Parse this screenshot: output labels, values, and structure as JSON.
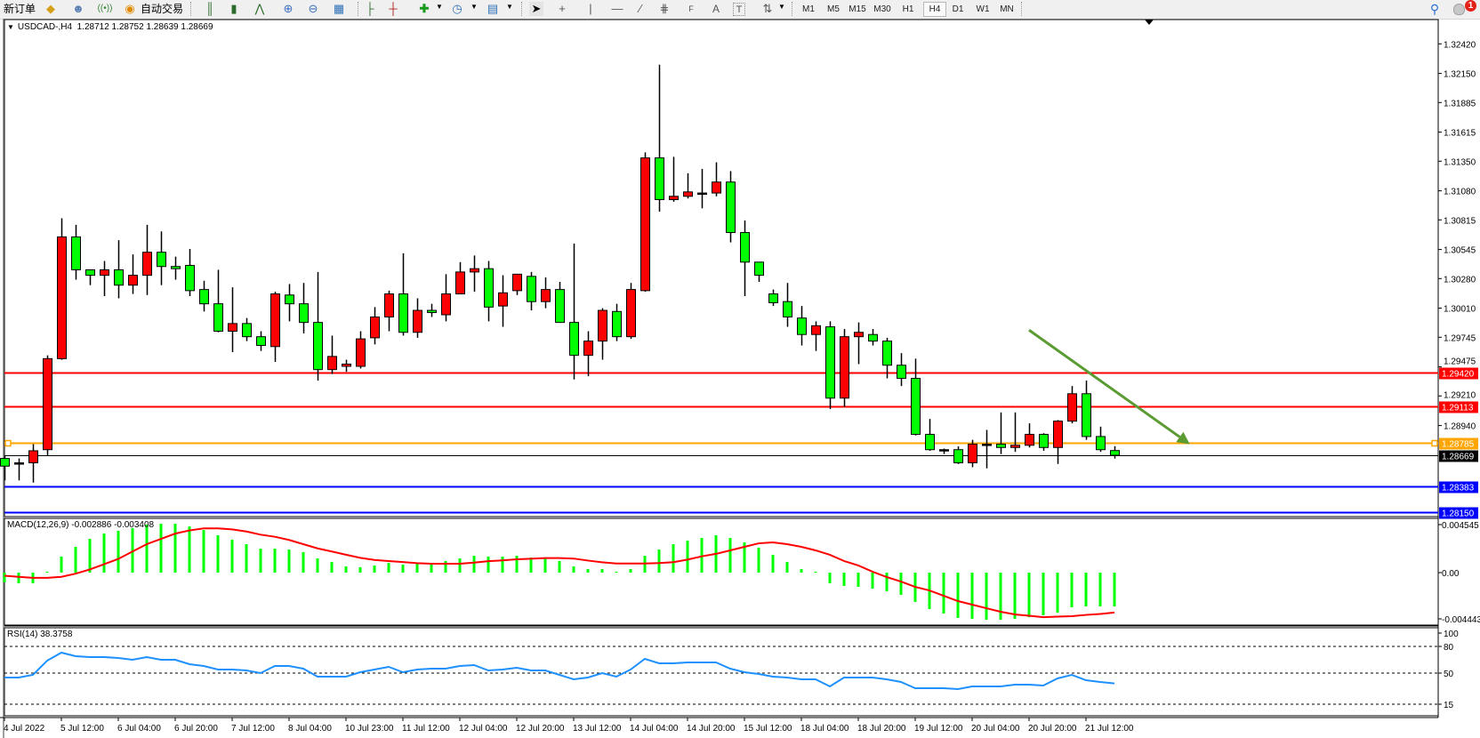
{
  "toolbar": {
    "new_order_label": "新订单",
    "auto_trading_label": "自动交易",
    "timeframes": [
      "M1",
      "M5",
      "M15",
      "M30",
      "H1",
      "H4",
      "D1",
      "W1",
      "MN"
    ],
    "active_timeframe": "H4",
    "drawing_tools": {
      "text_label": "A",
      "fibo_label": "F"
    },
    "notification_count": "1",
    "icons": [
      "market-watch-icon",
      "navigator-icon",
      "signals-icon",
      "auto-trading-icon",
      "bar-chart-icon",
      "candlestick-icon",
      "line-chart-icon",
      "zoom-in-icon",
      "zoom-out-icon",
      "tile-windows-icon",
      "auto-scroll-icon",
      "chart-shift-icon",
      "indicators-icon",
      "periods-icon",
      "templates-icon",
      "cursor-icon",
      "crosshair-icon",
      "vertical-line-icon",
      "horizontal-line-icon",
      "trendline-icon",
      "equidistant-channel-icon",
      "fibonacci-icon",
      "text-icon",
      "text-label-icon",
      "arrows-icon",
      "search-icon",
      "notification-icon"
    ]
  },
  "chart": {
    "symbol": "USDCAD-,H4",
    "ohlc_text": "1.28712 1.28752 1.28639 1.28669",
    "colors": {
      "bull": "#ff0000",
      "bear": "#00ff00",
      "outline": "#000000",
      "arrow": "#5a9b32"
    },
    "price_ticks": [
      "1.32420",
      "1.32150",
      "1.31885",
      "1.31615",
      "1.31350",
      "1.31080",
      "1.30815",
      "1.30545",
      "1.30280",
      "1.30010",
      "1.29745",
      "1.29475",
      "1.29210",
      "1.28940"
    ],
    "ylim": [
      1.2811,
      1.3264
    ],
    "hlines": [
      {
        "price": 1.2942,
        "label": "1.29420",
        "color": "#ff0000"
      },
      {
        "price": 1.29113,
        "label": "1.29113",
        "color": "#ff0000"
      },
      {
        "price": 1.28785,
        "label": "1.28785",
        "color": "#ffa500"
      },
      {
        "price": 1.28669,
        "label": "1.28669",
        "color": "#000000"
      },
      {
        "price": 1.28383,
        "label": "1.28383",
        "color": "#0000ff"
      },
      {
        "price": 1.2815,
        "label": "1.28150",
        "color": "#0000ff"
      }
    ],
    "trend_arrow": {
      "from_bar": 72,
      "from_price": 1.2981,
      "to_bar": 83.3,
      "to_price": 1.2877
    },
    "candles_ohlc": [
      [
        1.2864,
        1.2867,
        1.2844,
        1.2857
      ],
      [
        1.286,
        1.2864,
        1.2844,
        1.286
      ],
      [
        1.286,
        1.2877,
        1.2842,
        1.2871
      ],
      [
        1.2872,
        1.2958,
        1.2867,
        1.2955
      ],
      [
        1.2955,
        1.3083,
        1.2954,
        1.3066
      ],
      [
        1.3066,
        1.3077,
        1.3027,
        1.3036
      ],
      [
        1.3036,
        1.3036,
        1.3022,
        1.3031
      ],
      [
        1.3031,
        1.3044,
        1.3012,
        1.3036
      ],
      [
        1.3036,
        1.3063,
        1.301,
        1.3022
      ],
      [
        1.3022,
        1.305,
        1.3014,
        1.3031
      ],
      [
        1.3031,
        1.3077,
        1.3013,
        1.3052
      ],
      [
        1.3052,
        1.3071,
        1.3022,
        1.3039
      ],
      [
        1.3039,
        1.3048,
        1.3027,
        1.3037
      ],
      [
        1.304,
        1.3055,
        1.3012,
        1.3017
      ],
      [
        1.3018,
        1.3026,
        1.2998,
        1.3005
      ],
      [
        1.3005,
        1.3036,
        1.2979,
        1.298
      ],
      [
        1.298,
        1.302,
        1.2961,
        1.2987
      ],
      [
        1.2987,
        1.2992,
        1.2971,
        1.2975
      ],
      [
        1.2975,
        1.298,
        1.2962,
        1.2967
      ],
      [
        1.2966,
        1.3016,
        1.2952,
        1.3014
      ],
      [
        1.3013,
        1.3023,
        1.2989,
        1.3005
      ],
      [
        1.3005,
        1.3024,
        1.2978,
        1.2988
      ],
      [
        1.2988,
        1.3034,
        1.2935,
        1.2945
      ],
      [
        1.2945,
        1.2976,
        1.2941,
        1.2957
      ],
      [
        1.2948,
        1.2954,
        1.2943,
        1.295
      ],
      [
        1.2948,
        1.298,
        1.2946,
        1.2973
      ],
      [
        1.2974,
        1.3002,
        1.2968,
        1.2993
      ],
      [
        1.2993,
        1.3017,
        1.298,
        1.3014
      ],
      [
        1.3014,
        1.3051,
        1.2976,
        1.2979
      ],
      [
        1.2979,
        1.301,
        1.2974,
        1.2999
      ],
      [
        1.2999,
        1.3005,
        1.2993,
        1.2997
      ],
      [
        1.2995,
        1.3032,
        1.2989,
        1.3014
      ],
      [
        1.3014,
        1.3043,
        1.3014,
        1.3034
      ],
      [
        1.3034,
        1.3049,
        1.3016,
        1.3037
      ],
      [
        1.3037,
        1.3044,
        1.2989,
        1.3002
      ],
      [
        1.3003,
        1.3031,
        1.2984,
        1.3015
      ],
      [
        1.3017,
        1.3032,
        1.3013,
        1.3032
      ],
      [
        1.303,
        1.3034,
        1.2999,
        1.3007
      ],
      [
        1.3007,
        1.3029,
        1.3001,
        1.3018
      ],
      [
        1.3018,
        1.3025,
        1.2988,
        1.2988
      ],
      [
        1.2988,
        1.306,
        1.2936,
        1.2958
      ],
      [
        1.2958,
        1.298,
        1.2939,
        1.2971
      ],
      [
        1.2971,
        1.3001,
        1.2954,
        1.2999
      ],
      [
        1.2998,
        1.3005,
        1.2971,
        1.2975
      ],
      [
        1.2975,
        1.3024,
        1.2973,
        1.3018
      ],
      [
        1.3017,
        1.3143,
        1.3016,
        1.3138
      ],
      [
        1.3138,
        1.3223,
        1.3089,
        1.31
      ],
      [
        1.31,
        1.3139,
        1.3098,
        1.3103
      ],
      [
        1.3103,
        1.3124,
        1.3101,
        1.3107
      ],
      [
        1.3106,
        1.3128,
        1.3092,
        1.3106
      ],
      [
        1.3106,
        1.3134,
        1.3103,
        1.3116
      ],
      [
        1.3116,
        1.3126,
        1.3061,
        1.307
      ],
      [
        1.307,
        1.3081,
        1.3012,
        1.3043
      ],
      [
        1.3043,
        1.3043,
        1.3025,
        1.3031
      ],
      [
        1.3014,
        1.3018,
        1.3003,
        1.3006
      ],
      [
        1.3007,
        1.3024,
        1.2984,
        1.2993
      ],
      [
        1.2992,
        1.3003,
        1.2967,
        1.2977
      ],
      [
        1.2977,
        1.2989,
        1.2962,
        1.2985
      ],
      [
        1.2984,
        1.2989,
        1.2909,
        1.2919
      ],
      [
        1.2919,
        1.2982,
        1.2911,
        1.2975
      ],
      [
        1.2975,
        1.2988,
        1.295,
        1.2979
      ],
      [
        1.2977,
        1.2982,
        1.2967,
        1.2971
      ],
      [
        1.2971,
        1.2974,
        1.2937,
        1.2949
      ],
      [
        1.2949,
        1.296,
        1.293,
        1.2937
      ],
      [
        1.2937,
        1.2955,
        1.2885,
        1.2886
      ],
      [
        1.2886,
        1.29,
        1.2871,
        1.2872
      ],
      [
        1.2872,
        1.2873,
        1.2868,
        1.2872
      ],
      [
        1.2872,
        1.2875,
        1.2859,
        1.286
      ],
      [
        1.286,
        1.2881,
        1.2856,
        1.2877
      ],
      [
        1.2877,
        1.289,
        1.2855,
        1.2877
      ],
      [
        1.2877,
        1.2906,
        1.2868,
        1.2874
      ],
      [
        1.2874,
        1.2906,
        1.287,
        1.2876
      ],
      [
        1.2876,
        1.2896,
        1.2874,
        1.2886
      ],
      [
        1.2886,
        1.2887,
        1.2871,
        1.2874
      ],
      [
        1.2874,
        1.2899,
        1.2859,
        1.2898
      ],
      [
        1.2898,
        1.293,
        1.2896,
        1.2923
      ],
      [
        1.2923,
        1.2935,
        1.2881,
        1.2884
      ],
      [
        1.2884,
        1.2893,
        1.287,
        1.2872
      ],
      [
        1.28712,
        1.28752,
        1.28639,
        1.28669
      ]
    ],
    "time_labels": [
      "4 Jul 2022",
      "5 Jul 12:00",
      "6 Jul 04:00",
      "6 Jul 20:00",
      "7 Jul 12:00",
      "8 Jul 04:00",
      "10 Jul 23:00",
      "11 Jul 12:00",
      "12 Jul 04:00",
      "12 Jul 20:00",
      "13 Jul 12:00",
      "14 Jul 04:00",
      "14 Jul 20:00",
      "15 Jul 12:00",
      "18 Jul 04:00",
      "18 Jul 20:00",
      "19 Jul 12:00",
      "20 Jul 04:00",
      "20 Jul 20:00",
      "21 Jul 12:00"
    ]
  },
  "macd": {
    "title": "MACD(12,26,9) -0.002886 -0.003408",
    "axis_labels": [
      {
        "value": 0.004545,
        "label": "0.004545"
      },
      {
        "value": 0,
        "label": "0.00"
      },
      {
        "value": -0.004443,
        "label": "-0.004443"
      }
    ],
    "histogram_color": "#00ff00",
    "signal_color": "#ff0000",
    "histogram": [
      -0.00083,
      -0.00091,
      -0.00091,
      8e-05,
      0.00137,
      0.0022,
      0.00288,
      0.00334,
      0.00357,
      0.0038,
      0.0041,
      0.00417,
      0.00417,
      0.00395,
      0.00364,
      0.00319,
      0.00281,
      0.00243,
      0.00205,
      0.00205,
      0.00197,
      0.00175,
      0.00121,
      0.00091,
      0.00053,
      0.00046,
      0.00061,
      0.00083,
      0.00068,
      0.00076,
      0.00076,
      0.00099,
      0.00121,
      0.00144,
      0.00137,
      0.00137,
      0.00144,
      0.00129,
      0.00121,
      0.00099,
      0.00053,
      0.0003,
      0.0003,
      8e-05,
      0.0003,
      0.00144,
      0.00197,
      0.00243,
      0.00273,
      0.00296,
      0.00319,
      0.00296,
      0.00258,
      0.00213,
      0.00152,
      0.00091,
      0.0003,
      8e-05,
      -0.00091,
      -0.00114,
      -0.00121,
      -0.00137,
      -0.00159,
      -0.0019,
      -0.0025,
      -0.00311,
      -0.00349,
      -0.00387,
      -0.00395,
      -0.00402,
      -0.00402,
      -0.00395,
      -0.0038,
      -0.00364,
      -0.00342,
      -0.00296,
      -0.00288,
      -0.00288,
      -0.002886
    ],
    "signal": [
      -0.00027,
      -0.00036,
      -0.00045,
      -0.00045,
      -0.00036,
      -9e-05,
      0.00027,
      0.00072,
      0.00117,
      0.0018,
      0.00243,
      0.00288,
      0.00333,
      0.0036,
      0.00378,
      0.00378,
      0.00369,
      0.00351,
      0.00324,
      0.00306,
      0.00279,
      0.00243,
      0.00207,
      0.0018,
      0.00153,
      0.00126,
      0.00108,
      0.00099,
      0.0009,
      0.00081,
      0.00076,
      0.00076,
      0.00076,
      0.00085,
      0.00098,
      0.00104,
      0.00114,
      0.00119,
      0.00124,
      0.00124,
      0.0012,
      0.00103,
      0.00088,
      0.00078,
      0.00078,
      0.00078,
      0.00082,
      0.00089,
      0.00111,
      0.00139,
      0.0016,
      0.0019,
      0.0022,
      0.0025,
      0.00258,
      0.00243,
      0.0022,
      0.0019,
      0.00152,
      0.00099,
      0.00061,
      8e-05,
      -0.00038,
      -0.00076,
      -0.00122,
      -0.00152,
      -0.00198,
      -0.00243,
      -0.00273,
      -0.00304,
      -0.00334,
      -0.00357,
      -0.00368,
      -0.0038,
      -0.00376,
      -0.00372,
      -0.00361,
      -0.00353,
      -0.003408
    ]
  },
  "rsi": {
    "title": "RSI(14) 38.3758",
    "levels": [
      {
        "value": 100,
        "label": "100",
        "dotted": false
      },
      {
        "value": 80,
        "label": "80",
        "dotted": true
      },
      {
        "value": 50,
        "label": "50",
        "dotted": true
      },
      {
        "value": 15,
        "label": "15",
        "dotted": true
      }
    ],
    "line_color": "#1e90ff",
    "values": [
      45,
      45,
      48,
      64,
      73,
      69,
      68,
      68,
      67,
      65,
      68,
      65,
      65,
      60,
      58,
      54,
      54,
      53,
      50,
      58,
      58,
      55,
      46,
      46,
      46,
      51,
      54,
      57,
      51,
      54,
      55,
      55,
      58,
      59,
      53,
      54,
      56,
      53,
      53,
      48,
      43,
      45,
      50,
      46,
      54,
      66,
      61,
      61,
      62,
      62,
      62,
      55,
      51,
      49,
      46,
      45,
      43,
      43,
      35,
      45,
      45,
      45,
      43,
      40,
      33,
      33,
      33,
      32,
      35,
      35,
      35,
      37,
      37,
      36,
      44,
      48,
      42,
      40,
      38.38
    ]
  }
}
